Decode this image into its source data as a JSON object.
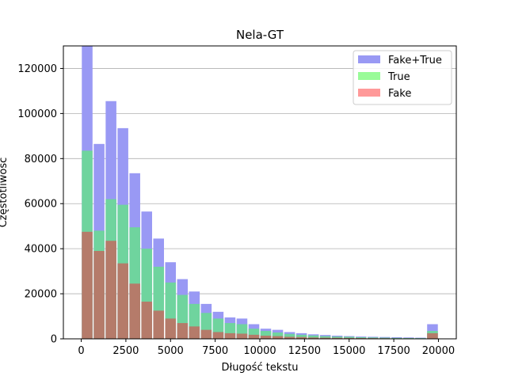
{
  "chart_data": {
    "type": "bar",
    "title": "Nela-GT",
    "xlabel": "Długość tekstu",
    "ylabel": "Częstotliwość",
    "xlim": [
      -1000,
      21000
    ],
    "ylim": [
      0,
      130000
    ],
    "xticks": [
      0,
      2500,
      5000,
      7500,
      10000,
      12500,
      15000,
      17500,
      20000
    ],
    "yticks": [
      0,
      20000,
      40000,
      60000,
      80000,
      100000,
      120000
    ],
    "grid": "horizontal",
    "legend_position": "top-right",
    "bin_width": 666.67,
    "x": [
      333,
      1000,
      1667,
      2333,
      3000,
      3667,
      4333,
      5000,
      5667,
      6333,
      7000,
      7667,
      8333,
      9000,
      9667,
      10333,
      11000,
      11667,
      12333,
      13000,
      13667,
      14333,
      15000,
      15667,
      16333,
      17000,
      17667,
      18333,
      19000,
      19667
    ],
    "series": [
      {
        "name": "Fake+True",
        "color": "#9999f4",
        "values": [
          130000,
          86500,
          105500,
          93500,
          73500,
          56500,
          44500,
          34000,
          26500,
          21000,
          15500,
          12000,
          9500,
          9000,
          6500,
          4500,
          4000,
          3000,
          2500,
          2000,
          1700,
          1400,
          1200,
          1000,
          900,
          800,
          700,
          600,
          500,
          6500
        ]
      },
      {
        "name": "True",
        "color": "#6fd49e",
        "values": [
          83500,
          48000,
          62000,
          59500,
          49500,
          40000,
          32000,
          25000,
          19500,
          15500,
          11500,
          9000,
          7000,
          6500,
          4500,
          3500,
          2800,
          2200,
          1800,
          1500,
          1200,
          1000,
          900,
          700,
          600,
          500,
          400,
          350,
          300,
          3500
        ]
      },
      {
        "name": "Fake",
        "color": "#b57b6a",
        "values": [
          47500,
          39000,
          43500,
          33500,
          24500,
          16500,
          12500,
          9000,
          7000,
          5500,
          4000,
          3000,
          2500,
          2300,
          1800,
          1400,
          1200,
          900,
          800,
          600,
          500,
          450,
          400,
          350,
          300,
          250,
          200,
          200,
          150,
          2500
        ]
      }
    ],
    "legend": [
      {
        "label": "Fake+True",
        "color": "#9999f4"
      },
      {
        "label": "True",
        "color": "#99fb98"
      },
      {
        "label": "Fake",
        "color": "#ff9999"
      }
    ]
  }
}
